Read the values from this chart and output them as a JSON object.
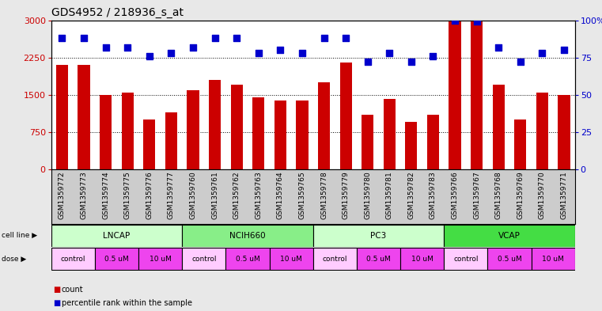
{
  "title": "GDS4952 / 218936_s_at",
  "samples": [
    "GSM1359772",
    "GSM1359773",
    "GSM1359774",
    "GSM1359775",
    "GSM1359776",
    "GSM1359777",
    "GSM1359760",
    "GSM1359761",
    "GSM1359762",
    "GSM1359763",
    "GSM1359764",
    "GSM1359765",
    "GSM1359778",
    "GSM1359779",
    "GSM1359780",
    "GSM1359781",
    "GSM1359782",
    "GSM1359783",
    "GSM1359766",
    "GSM1359767",
    "GSM1359768",
    "GSM1359769",
    "GSM1359770",
    "GSM1359771"
  ],
  "counts": [
    2100,
    2100,
    1500,
    1550,
    1000,
    1150,
    1600,
    1800,
    1700,
    1450,
    1380,
    1380,
    1750,
    2150,
    1100,
    1420,
    950,
    1100,
    3000,
    3000,
    1700,
    1000,
    1550,
    1500
  ],
  "percentiles": [
    88,
    88,
    82,
    82,
    76,
    78,
    82,
    88,
    88,
    78,
    80,
    78,
    88,
    88,
    72,
    78,
    72,
    76,
    100,
    99,
    82,
    72,
    78,
    80
  ],
  "bar_color": "#cc0000",
  "dot_color": "#0000cc",
  "left_ylim": [
    0,
    3000
  ],
  "right_ylim": [
    0,
    100
  ],
  "left_yticks": [
    0,
    750,
    1500,
    2250,
    3000
  ],
  "right_yticks": [
    0,
    25,
    50,
    75,
    100
  ],
  "right_yticklabels": [
    "0",
    "25",
    "50",
    "75",
    "100%"
  ],
  "cell_lines": [
    {
      "label": "LNCAP",
      "start": 0,
      "end": 6,
      "color": "#ccffcc"
    },
    {
      "label": "NCIH660",
      "start": 6,
      "end": 12,
      "color": "#88ee88"
    },
    {
      "label": "PC3",
      "start": 12,
      "end": 18,
      "color": "#ccffcc"
    },
    {
      "label": "VCAP",
      "start": 18,
      "end": 24,
      "color": "#44dd44"
    }
  ],
  "doses": [
    {
      "label": "control",
      "start": 0,
      "end": 2,
      "color": "#ffccff"
    },
    {
      "label": "0.5 uM",
      "start": 2,
      "end": 4,
      "color": "#ee44ee"
    },
    {
      "label": "10 uM",
      "start": 4,
      "end": 6,
      "color": "#ee44ee"
    },
    {
      "label": "control",
      "start": 6,
      "end": 8,
      "color": "#ffccff"
    },
    {
      "label": "0.5 uM",
      "start": 8,
      "end": 10,
      "color": "#ee44ee"
    },
    {
      "label": "10 uM",
      "start": 10,
      "end": 12,
      "color": "#ee44ee"
    },
    {
      "label": "control",
      "start": 12,
      "end": 14,
      "color": "#ffccff"
    },
    {
      "label": "0.5 uM",
      "start": 14,
      "end": 16,
      "color": "#ee44ee"
    },
    {
      "label": "10 uM",
      "start": 16,
      "end": 18,
      "color": "#ee44ee"
    },
    {
      "label": "control",
      "start": 18,
      "end": 20,
      "color": "#ffccff"
    },
    {
      "label": "0.5 uM",
      "start": 20,
      "end": 22,
      "color": "#ee44ee"
    },
    {
      "label": "10 uM",
      "start": 22,
      "end": 24,
      "color": "#ee44ee"
    }
  ],
  "bg_color": "#e8e8e8",
  "plot_bg": "#ffffff",
  "xtick_bg": "#cccccc",
  "grid_color": "#000000",
  "title_fontsize": 10,
  "tick_fontsize": 6.5,
  "label_fontsize": 8,
  "bar_width": 0.55,
  "dot_size": 28,
  "fig_width": 7.61,
  "fig_height": 3.93,
  "dpi": 100
}
